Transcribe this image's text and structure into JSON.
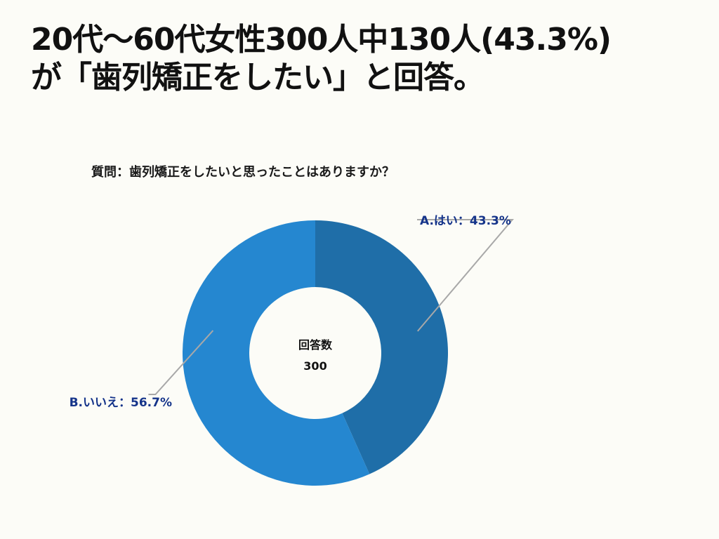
{
  "headline": {
    "line1": "20代〜60代女性300人中130人(43.3%)",
    "line2": "が「歯列矯正をしたい」と回答。"
  },
  "question": "質問：歯列矯正をしたいと思ったことはありますか？",
  "colors": {
    "background": "#fcfcf7",
    "yes": "#1f6ea8",
    "no": "#2587d0",
    "label": "#15348a",
    "leader": "#a8a8a8",
    "center": "#ffffff"
  },
  "chart_data": {
    "type": "pie",
    "style": "donut",
    "total": 300,
    "center_label": "回答数",
    "center_value": "300",
    "start": "12 o'clock",
    "direction": "clockwise",
    "slices": [
      {
        "key": "yes",
        "label": "A.はい：43.3%",
        "value": 43.3
      },
      {
        "key": "no",
        "label": "B.いいえ：56.7%",
        "value": 56.7
      }
    ]
  }
}
